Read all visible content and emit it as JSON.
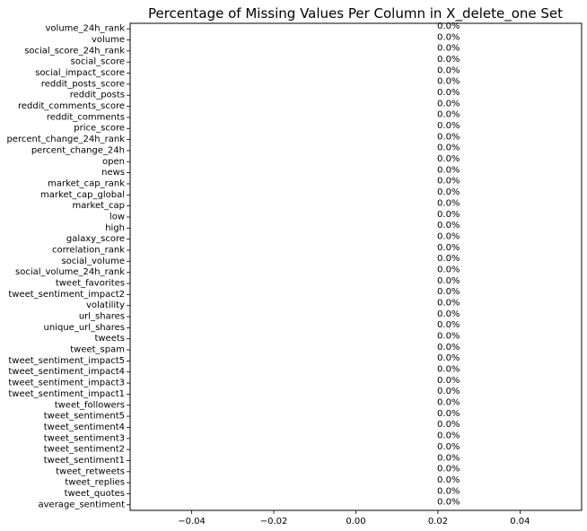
{
  "chart_data": {
    "type": "bar",
    "orientation": "horizontal",
    "title": "Percentage of Missing Values Per Column in X_delete_one Set",
    "xlabel": "",
    "ylabel": "",
    "xlim": [
      -0.055,
      0.055
    ],
    "xticks": [
      -0.04,
      -0.02,
      0.0,
      0.02,
      0.04
    ],
    "xtick_labels": [
      "−0.04",
      "−0.02",
      "0.00",
      "0.02",
      "0.04"
    ],
    "grid": false,
    "categories": [
      "volume_24h_rank",
      "volume",
      "social_score_24h_rank",
      "social_score",
      "social_impact_score",
      "reddit_posts_score",
      "reddit_posts",
      "reddit_comments_score",
      "reddit_comments",
      "price_score",
      "percent_change_24h_rank",
      "percent_change_24h",
      "open",
      "news",
      "market_cap_rank",
      "market_cap_global",
      "market_cap",
      "low",
      "high",
      "galaxy_score",
      "correlation_rank",
      "social_volume",
      "social_volume_24h_rank",
      "tweet_favorites",
      "tweet_sentiment_impact2",
      "volatility",
      "url_shares",
      "unique_url_shares",
      "tweets",
      "tweet_spam",
      "tweet_sentiment_impact5",
      "tweet_sentiment_impact4",
      "tweet_sentiment_impact3",
      "tweet_sentiment_impact1",
      "tweet_followers",
      "tweet_sentiment5",
      "tweet_sentiment4",
      "tweet_sentiment3",
      "tweet_sentiment2",
      "tweet_sentiment1",
      "tweet_retweets",
      "tweet_replies",
      "tweet_quotes",
      "average_sentiment"
    ],
    "values": [
      0,
      0,
      0,
      0,
      0,
      0,
      0,
      0,
      0,
      0,
      0,
      0,
      0,
      0,
      0,
      0,
      0,
      0,
      0,
      0,
      0,
      0,
      0,
      0,
      0,
      0,
      0,
      0,
      0,
      0,
      0,
      0,
      0,
      0,
      0,
      0,
      0,
      0,
      0,
      0,
      0,
      0,
      0,
      0
    ],
    "data_labels": [
      "0.0%",
      "0.0%",
      "0.0%",
      "0.0%",
      "0.0%",
      "0.0%",
      "0.0%",
      "0.0%",
      "0.0%",
      "0.0%",
      "0.0%",
      "0.0%",
      "0.0%",
      "0.0%",
      "0.0%",
      "0.0%",
      "0.0%",
      "0.0%",
      "0.0%",
      "0.0%",
      "0.0%",
      "0.0%",
      "0.0%",
      "0.0%",
      "0.0%",
      "0.0%",
      "0.0%",
      "0.0%",
      "0.0%",
      "0.0%",
      "0.0%",
      "0.0%",
      "0.0%",
      "0.0%",
      "0.0%",
      "0.0%",
      "0.0%",
      "0.0%",
      "0.0%",
      "0.0%",
      "0.0%",
      "0.0%",
      "0.0%",
      "0.0%"
    ],
    "colors": {
      "bar": "#1f77b4",
      "axis": "#000000",
      "text": "#000000"
    }
  }
}
